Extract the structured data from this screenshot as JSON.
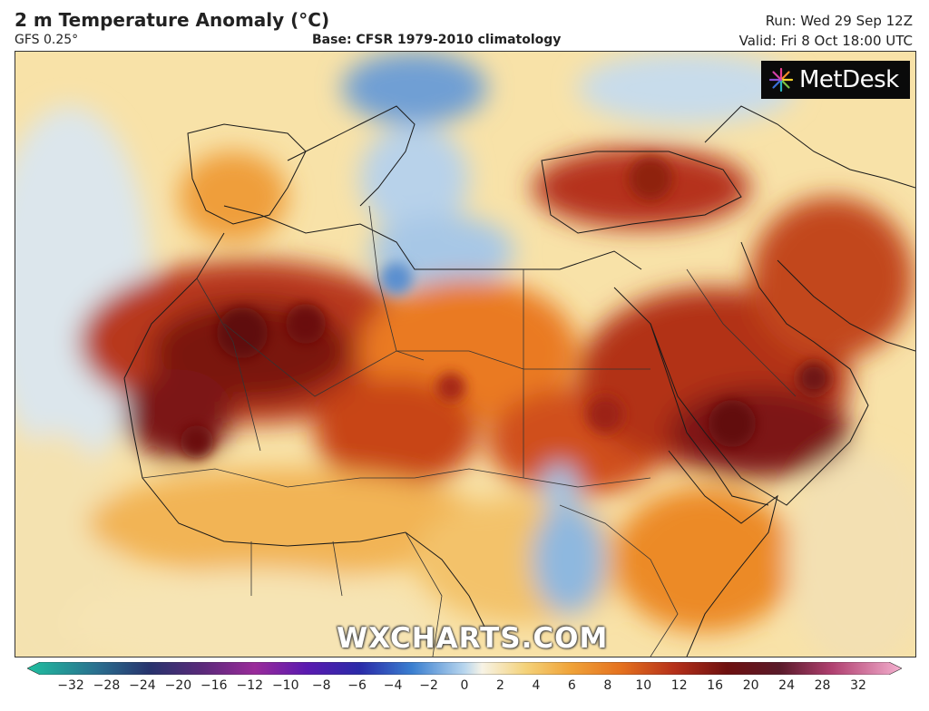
{
  "header": {
    "title": "2 m Temperature Anomaly (°C)",
    "model": "GFS 0.25°",
    "base": "Base: CFSR 1979-2010 climatology",
    "run": "Run: Wed 29 Sep 12Z",
    "valid": "Valid: Fri 8 Oct 18:00 UTC"
  },
  "logo": {
    "text": "MetDesk",
    "icon": "metdesk-starburst-icon"
  },
  "watermark": "WXCHARTS.COM",
  "colors": {
    "cold_extreme": "#1fbf9f",
    "deep_blue": "#1f3fa8",
    "light_blue": "#9ec6e6",
    "neutral": "#f4f0e0",
    "yellow": "#f6d37a",
    "orange": "#ef8a1e",
    "red": "#c0341a",
    "dark_red": "#6e0f0f",
    "pink_extreme": "#f2a6c8"
  },
  "colorbar": {
    "ticks": [
      "−32",
      "−28",
      "−24",
      "−20",
      "−16",
      "−12",
      "−10",
      "−8",
      "−6",
      "−4",
      "−2",
      "0",
      "2",
      "4",
      "6",
      "8",
      "10",
      "12",
      "16",
      "20",
      "24",
      "28",
      "32"
    ]
  }
}
